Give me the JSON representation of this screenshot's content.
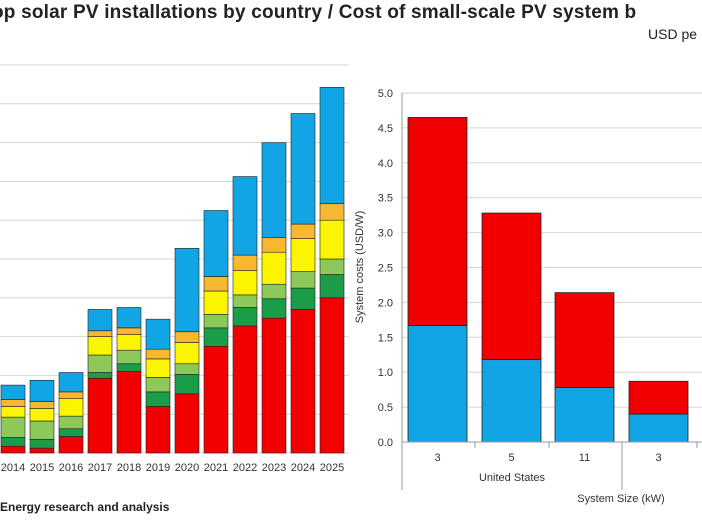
{
  "header": {
    "title": "op solar PV installations by country / Cost of small-scale PV system b",
    "subtitle": "USD pe"
  },
  "footer": {
    "source": "Energy research and analysis"
  },
  "colors": {
    "red": "#f20000",
    "darkgreen": "#1a9c48",
    "lightgreen": "#8dc85a",
    "yellow": "#fbf500",
    "orange": "#f7b731",
    "blue": "#12a5e6",
    "grid": "#d6d6d6"
  },
  "chart_data": [
    {
      "type": "bar",
      "stacked": true,
      "categories": [
        "2014",
        "2015",
        "2016",
        "2017",
        "2018",
        "2019",
        "2020",
        "2021",
        "2022",
        "2023",
        "2024",
        "2025"
      ],
      "segment_colors": [
        "#f20000",
        "#1a9c48",
        "#8dc85a",
        "#fbf500",
        "#f7b731",
        "#12a5e6"
      ],
      "stacks": [
        [
          0.35,
          0.45,
          1.05,
          0.55,
          0.35,
          0.75
        ],
        [
          0.25,
          0.45,
          0.95,
          0.65,
          0.35,
          1.1
        ],
        [
          0.85,
          0.4,
          0.65,
          0.9,
          0.35,
          1.0
        ],
        [
          3.85,
          0.3,
          0.9,
          0.95,
          0.3,
          1.1
        ],
        [
          4.2,
          0.4,
          0.7,
          0.8,
          0.35,
          1.05
        ],
        [
          2.4,
          0.75,
          0.75,
          0.95,
          0.5,
          1.55
        ],
        [
          3.05,
          1.0,
          0.55,
          1.1,
          0.55,
          4.3
        ],
        [
          5.5,
          0.95,
          0.7,
          1.2,
          0.75,
          3.4
        ],
        [
          6.55,
          0.95,
          0.65,
          1.25,
          0.8,
          4.05
        ],
        [
          6.95,
          1.0,
          0.75,
          1.65,
          0.75,
          4.9
        ],
        [
          7.4,
          1.1,
          0.85,
          1.7,
          0.75,
          5.7
        ],
        [
          8.0,
          1.2,
          0.8,
          2.0,
          0.85,
          6.0
        ]
      ],
      "grid": true
    },
    {
      "type": "bar",
      "stacked": true,
      "categories": [
        "3",
        "5",
        "11",
        "3"
      ],
      "group_labels": [
        {
          "label": "United States",
          "span": [
            0,
            2
          ]
        }
      ],
      "xlabel": "System Size (kW)",
      "ylabel": "System costs (USD/W)",
      "ylim": [
        0,
        5.0
      ],
      "yticks": [
        "0.0",
        "0.5",
        "1.0",
        "1.5",
        "2.0",
        "2.5",
        "3.0",
        "3.5",
        "4.0",
        "4.5",
        "5.0"
      ],
      "series": [
        {
          "color": "#12a5e6",
          "values": [
            1.67,
            1.18,
            0.78,
            0.4
          ]
        },
        {
          "color": "#f20000",
          "values": [
            2.98,
            2.1,
            1.36,
            0.47
          ]
        }
      ],
      "totals": [
        4.65,
        3.28,
        2.14,
        0.87
      ],
      "grid": true
    }
  ]
}
